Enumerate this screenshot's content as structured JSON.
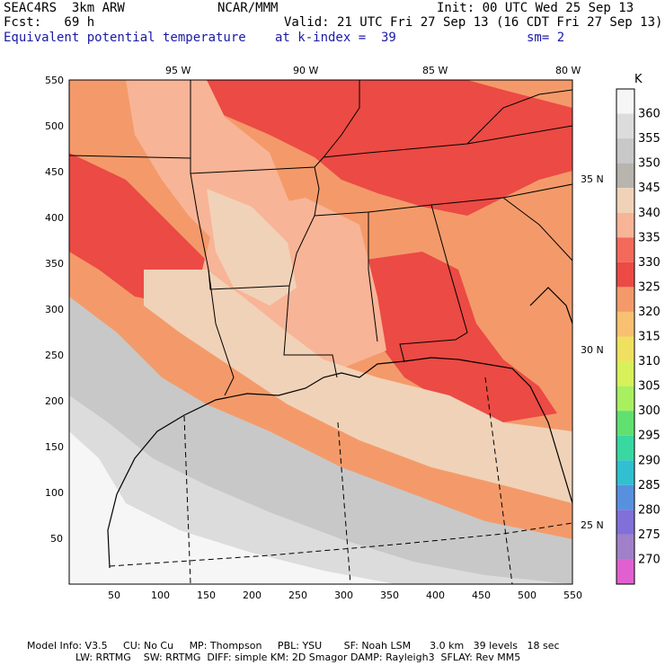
{
  "header": {
    "model": "SEAC4RS  3km ARW",
    "org": "NCAR/MMM",
    "init": "Init: 00 UTC Wed 25 Sep 13",
    "fcst": "Fcst:   69 h",
    "valid": "Valid: 21 UTC Fri 27 Sep 13 (16 CDT Fri 27 Sep 13)",
    "field": "Equivalent potential temperature",
    "level": "at k-index =  39",
    "smooth": "sm= 2"
  },
  "lon_labels": [
    "95 W",
    "90 W",
    "85 W",
    "80 W"
  ],
  "lat_labels": [
    "35 N",
    "30 N",
    "25 N"
  ],
  "x_ticks": [
    "50",
    "100",
    "150",
    "200",
    "250",
    "300",
    "350",
    "400",
    "450",
    "500",
    "550"
  ],
  "y_ticks": [
    "550",
    "500",
    "450",
    "400",
    "350",
    "300",
    "250",
    "200",
    "150",
    "100",
    "50"
  ],
  "colorbar": {
    "unit": "K",
    "levels": [
      "360",
      "355",
      "350",
      "345",
      "340",
      "335",
      "330",
      "325",
      "320",
      "315",
      "310",
      "305",
      "300",
      "295",
      "290",
      "285",
      "280",
      "275",
      "270"
    ],
    "colors": [
      "#f6f6f6",
      "#dcdcdc",
      "#c8c8c8",
      "#b8b4ae",
      "#f0d2b8",
      "#f8b496",
      "#f46a5a",
      "#ec4a44",
      "#f49a6a",
      "#f8c070",
      "#f0e060",
      "#d8f05a",
      "#a8f060",
      "#60e070",
      "#38d8a0",
      "#30c0d0",
      "#5890e0",
      "#8070d8",
      "#a080c8",
      "#e060d0"
    ]
  },
  "footer": {
    "line1": "Model Info: V3.5     CU: No Cu     MP: Thompson     PBL: YSU       SF: Noah LSM      3.0 km   39 levels   18 sec",
    "line2": "LW: RRTMG    SW: RRTMG  DIFF: simple KM: 2D Smagor DAMP: Rayleigh3  SFLAY: Rev MM5"
  }
}
